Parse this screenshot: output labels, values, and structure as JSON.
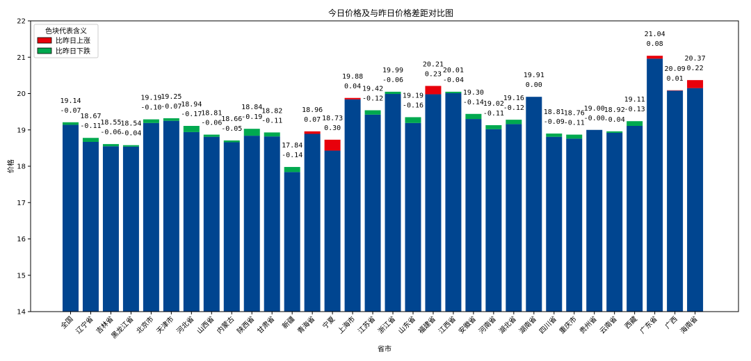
{
  "chart_data": {
    "type": "bar",
    "title": "今日价格及与昨日价格差距对比图",
    "xlabel": "省市",
    "ylabel": "价格",
    "ylim": [
      14,
      22
    ],
    "yticks": [
      14,
      15,
      16,
      17,
      18,
      19,
      20,
      21,
      22
    ],
    "grid": false,
    "legend": {
      "title": "色块代表含义",
      "placement": "top-left",
      "entries": [
        {
          "label": "比昨日上涨",
          "color": "#e8000b"
        },
        {
          "label": "比昨日下跌",
          "color": "#00a94f"
        }
      ]
    },
    "colors": {
      "base": "#004590",
      "up": "#e8000b",
      "down": "#00a94f"
    },
    "categories": [
      "全国",
      "辽宁省",
      "吉林省",
      "黑龙江省",
      "北京市",
      "天津市",
      "河北省",
      "山西省",
      "内蒙古",
      "陕西省",
      "甘肃省",
      "新疆",
      "青海省",
      "宁夏",
      "上海市",
      "江苏省",
      "浙江省",
      "山东省",
      "福建省",
      "江西省",
      "安徽省",
      "河南省",
      "湖北省",
      "湖南省",
      "四川省",
      "重庆市",
      "贵州省",
      "云南省",
      "西藏",
      "广东省",
      "广西",
      "海南省"
    ],
    "values": [
      19.14,
      18.67,
      18.55,
      18.54,
      19.19,
      19.25,
      18.94,
      18.81,
      18.66,
      18.84,
      18.82,
      17.84,
      18.96,
      18.73,
      19.88,
      19.42,
      19.99,
      19.19,
      20.21,
      20.01,
      19.3,
      19.02,
      19.16,
      19.91,
      18.81,
      18.76,
      19.0,
      18.92,
      19.11,
      21.04,
      20.09,
      20.37
    ],
    "changes": [
      -0.07,
      -0.11,
      -0.06,
      -0.04,
      -0.1,
      -0.07,
      -0.17,
      -0.06,
      -0.05,
      -0.19,
      -0.11,
      -0.14,
      0.07,
      0.3,
      0.04,
      -0.12,
      -0.06,
      -0.16,
      0.23,
      -0.04,
      -0.14,
      -0.11,
      -0.12,
      0.0,
      -0.09,
      -0.11,
      -0.0,
      -0.04,
      -0.13,
      0.08,
      0.01,
      0.22
    ],
    "value_labels": [
      "19.14",
      "18.67",
      "18.55",
      "18.54",
      "19.19",
      "19.25",
      "18.94",
      "18.81",
      "18.66",
      "18.84",
      "18.82",
      "17.84",
      "18.96",
      "18.73",
      "19.88",
      "19.42",
      "19.99",
      "19.19",
      "20.21",
      "20.01",
      "19.30",
      "19.02",
      "19.16",
      "19.91",
      "18.81",
      "18.76",
      "19.00",
      "18.92",
      "19.11",
      "21.04",
      "20.09",
      "20.37"
    ],
    "change_labels": [
      "-0.07",
      "-0.11",
      "-0.06",
      "-0.04",
      "-0.10",
      "-0.07",
      "-0.17",
      "-0.06",
      "-0.05",
      "-0.19",
      "-0.11",
      "-0.14",
      "0.07",
      "0.30",
      "0.04",
      "-0.12",
      "-0.06",
      "-0.16",
      "0.23",
      "-0.04",
      "-0.14",
      "-0.11",
      "-0.12",
      "0.00",
      "-0.09",
      "-0.11",
      "-0.00",
      "-0.04",
      "-0.13",
      "0.08",
      "0.01",
      "0.22"
    ]
  }
}
